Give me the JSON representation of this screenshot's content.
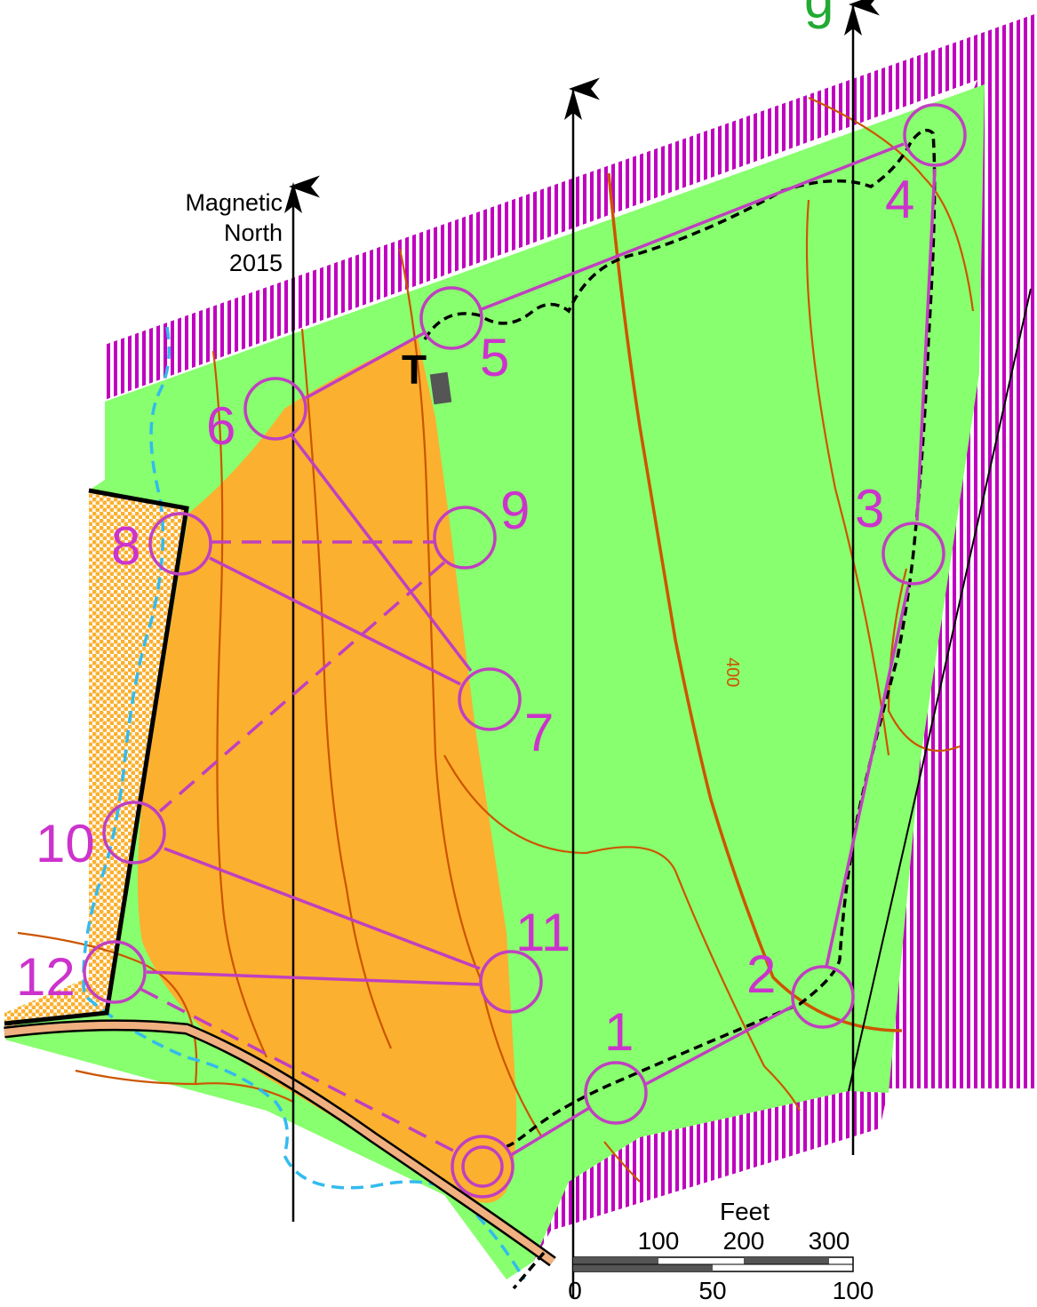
{
  "colors": {
    "open": "#88ff6e",
    "rough": "#fbb02f",
    "forbidden": "#c000c0",
    "course": "#c040c0",
    "contour": "#cc5500",
    "water": "#33bbee",
    "road_fill": "#f0b080",
    "trail": "#000000",
    "stripe_bg": "#ffffff"
  },
  "title_fragment": "g",
  "north": {
    "label_line1": "Magnetic",
    "label_line2": "North",
    "label_line3": "2015"
  },
  "contour_label": "400",
  "controls": [
    {
      "number": "1"
    },
    {
      "number": "2"
    },
    {
      "number": "3"
    },
    {
      "number": "4"
    },
    {
      "number": "5"
    },
    {
      "number": "6"
    },
    {
      "number": "7"
    },
    {
      "number": "8"
    },
    {
      "number": "9"
    },
    {
      "number": "10"
    },
    {
      "number": "11"
    },
    {
      "number": "12"
    }
  ],
  "building_symbol": "T",
  "scale": {
    "feet_title": "Feet",
    "feet_ticks": [
      "100",
      "200",
      "300"
    ],
    "meter_ticks": [
      "0",
      "50",
      "100"
    ]
  },
  "icons": {
    "start": "start-double-circle-icon",
    "north_arrow": "arrow-up-icon"
  }
}
